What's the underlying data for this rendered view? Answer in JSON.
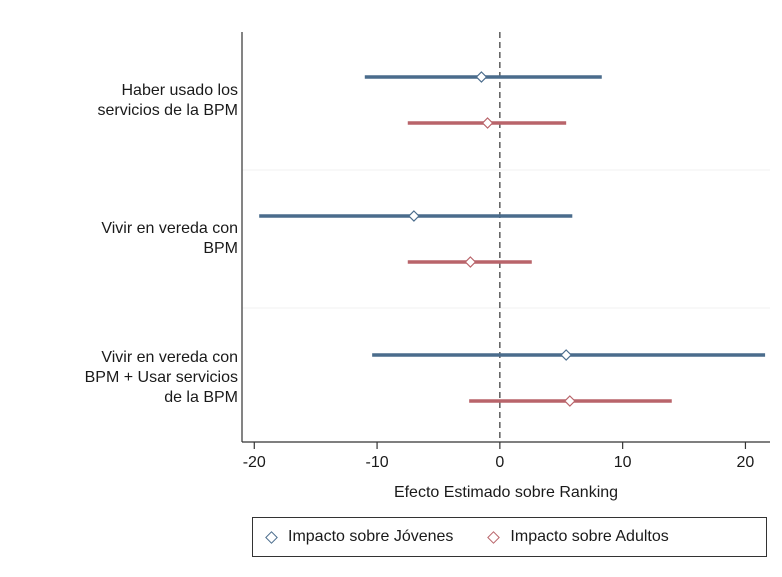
{
  "chart_data": {
    "type": "forest",
    "xlabel": "Efecto Estimado sobre Ranking",
    "xlim": [
      -21,
      22
    ],
    "xticks": [
      -20,
      -10,
      0,
      10,
      20
    ],
    "reference_line_x": 0,
    "categories": [
      "Haber usado los\nservicios de la BPM",
      "Vivir en vereda con\nBPM",
      "Vivir en vereda con\nBPM + Usar servicios\nde la BPM"
    ],
    "series": [
      {
        "name": "Impacto sobre Jóvenes",
        "color": "#4a6c8c",
        "points": [
          {
            "estimate": -1.5,
            "lower": -11.0,
            "upper": 8.3
          },
          {
            "estimate": -7.0,
            "lower": -19.6,
            "upper": 5.9
          },
          {
            "estimate": 5.4,
            "lower": -10.4,
            "upper": 21.6
          }
        ]
      },
      {
        "name": "Impacto sobre Adultos",
        "color": "#b9646a",
        "points": [
          {
            "estimate": -1.0,
            "lower": -7.5,
            "upper": 5.4
          },
          {
            "estimate": -2.4,
            "lower": -7.5,
            "upper": 2.6
          },
          {
            "estimate": 5.7,
            "lower": -2.5,
            "upper": 14.0
          }
        ]
      }
    ],
    "legend_position": "bottom"
  }
}
